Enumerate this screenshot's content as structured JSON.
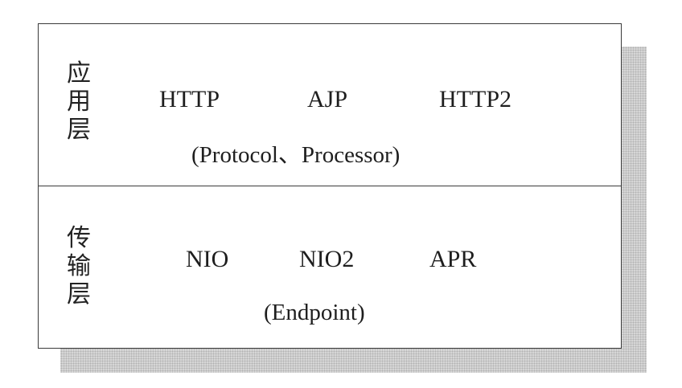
{
  "application_layer": {
    "title": "应\n用\n层",
    "protocols": [
      "HTTP",
      "AJP",
      "HTTP2"
    ],
    "components": "(Protocol、Processor)"
  },
  "transport_layer": {
    "title": "传\n输\n层",
    "io_models": [
      "NIO",
      "NIO2",
      "APR"
    ],
    "components": "(Endpoint)"
  }
}
